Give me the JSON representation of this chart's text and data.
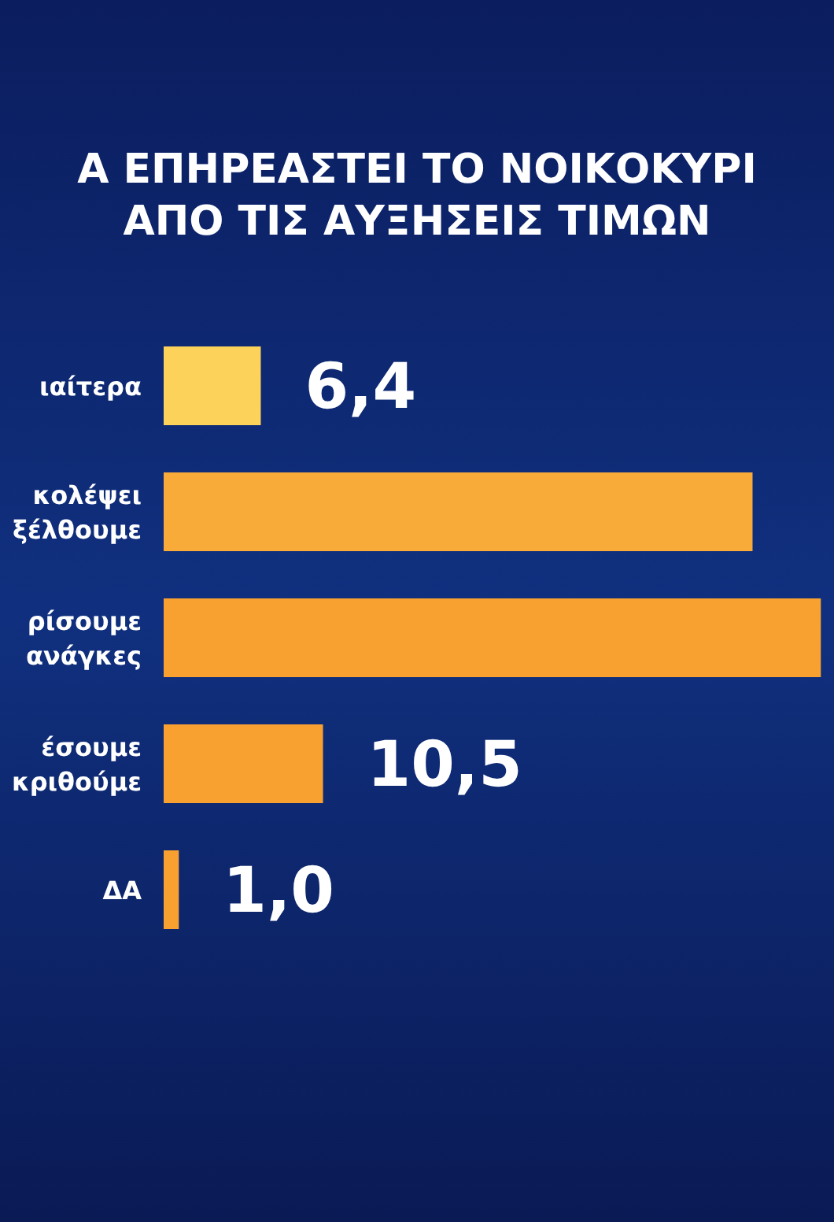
{
  "chart_data": {
    "type": "bar",
    "orientation": "horizontal",
    "title": "Α ΕΠΗΡΕΑΣΤΕΙ ΤΟ ΝΟΙΚΟΚΥΡΙ ΑΠΟ ΤΙΣ ΑΥΞΗΣΕΙΣ ΤΙΜΩΝ",
    "categories": [
      "ιαίτερα",
      "κολέψει ξέλθουμε",
      "ρίσουμε ανάγκες",
      "έσουμε κριθούμε",
      "ΔΑ"
    ],
    "values": [
      6.4,
      38.8,
      43.3,
      10.5,
      1.0
    ],
    "colors": [
      "#fcd25a",
      "#f9ab3a",
      "#f8a030",
      "#f8a030",
      "#f8a030"
    ],
    "value_labels": [
      "6,4",
      null,
      null,
      "10,5",
      "1,0"
    ]
  }
}
